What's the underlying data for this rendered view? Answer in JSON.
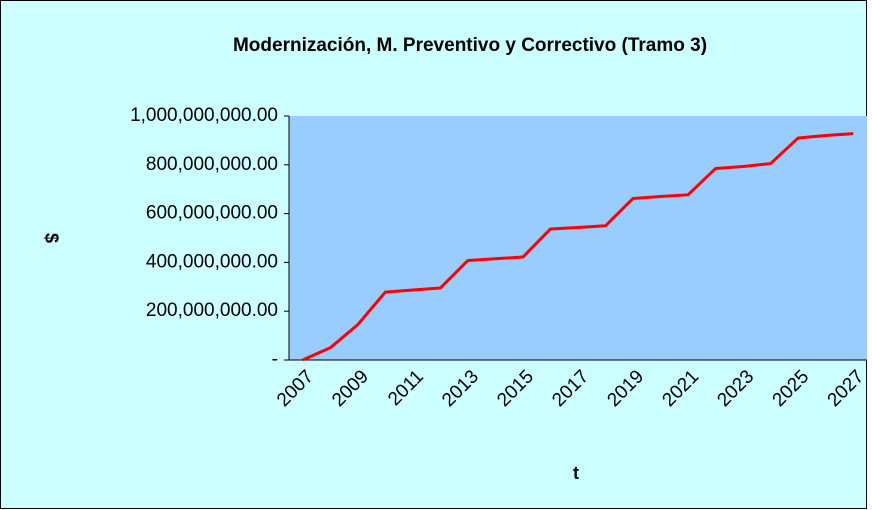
{
  "chart_data": {
    "type": "line",
    "title": "Modernización, M. Preventivo y Correctivo  (Tramo 3)",
    "xlabel": "t",
    "ylabel": "$",
    "categories": [
      "2007",
      null,
      "2009",
      null,
      "2011",
      null,
      "2013",
      null,
      "2015",
      null,
      "2017",
      null,
      "2019",
      null,
      "2021",
      null,
      "2023",
      null,
      "2025",
      null,
      "2027"
    ],
    "series": [
      {
        "name": "Tramo 3",
        "color": "#ff0000",
        "values": [
          0,
          50000000,
          145000000,
          278000000,
          287000000,
          295000000,
          408000000,
          415000000,
          422000000,
          537000000,
          543000000,
          550000000,
          662000000,
          670000000,
          677000000,
          785000000,
          793000000,
          805000000,
          910000000,
          920000000,
          928000000
        ]
      }
    ],
    "ylim": [
      0,
      1000000000
    ],
    "yticks": [
      {
        "value": 0,
        "label": "-"
      },
      {
        "value": 200000000,
        "label": "200,000,000.00"
      },
      {
        "value": 400000000,
        "label": "400,000,000.00"
      },
      {
        "value": 600000000,
        "label": "600,000,000.00"
      },
      {
        "value": 800000000,
        "label": "800,000,000.00"
      },
      {
        "value": 1000000000,
        "label": "1,000,000,000.00"
      }
    ]
  }
}
